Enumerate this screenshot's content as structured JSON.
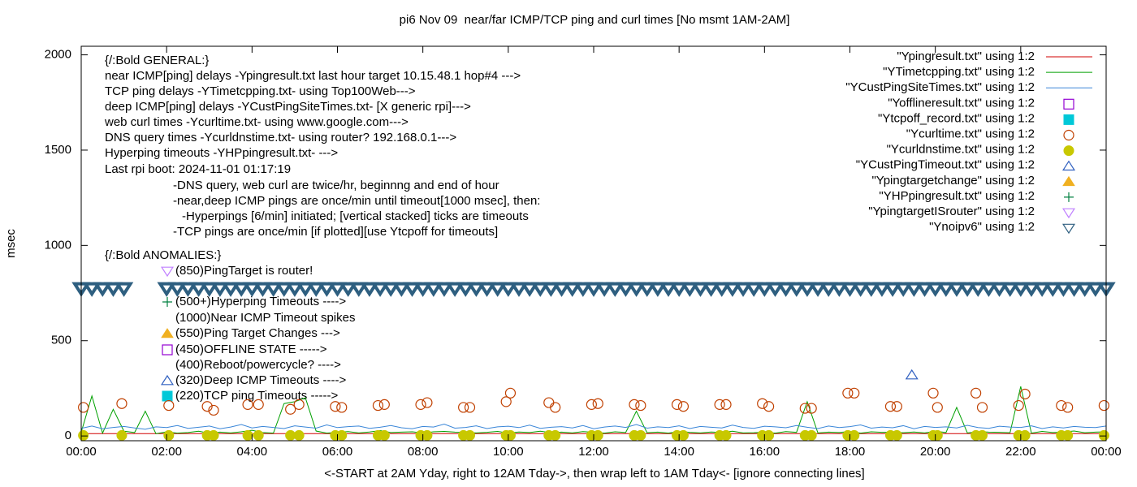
{
  "chart_data": {
    "type": "line",
    "title": "pi6 Nov 09  near/far ICMP/TCP ping and curl times [No msmt 1AM-2AM]",
    "xlabel": "<-START at 2AM Yday, right to 12AM Tday->, then wrap left to 1AM Tday<- [ignore connecting lines]",
    "ylabel": "msec",
    "xlim": [
      0,
      24
    ],
    "ylim": [
      -25,
      2045
    ],
    "xticks": [
      {
        "value": 0,
        "label": "00:00"
      },
      {
        "value": 2,
        "label": "02:00"
      },
      {
        "value": 4,
        "label": "04:00"
      },
      {
        "value": 6,
        "label": "06:00"
      },
      {
        "value": 8,
        "label": "08:00"
      },
      {
        "value": 10,
        "label": "10:00"
      },
      {
        "value": 12,
        "label": "12:00"
      },
      {
        "value": 14,
        "label": "14:00"
      },
      {
        "value": 16,
        "label": "16:00"
      },
      {
        "value": 18,
        "label": "18:00"
      },
      {
        "value": 20,
        "label": "20:00"
      },
      {
        "value": 22,
        "label": "22:00"
      },
      {
        "value": 24,
        "label": "00:00"
      }
    ],
    "yticks": [
      0,
      500,
      1000,
      1500,
      2000
    ],
    "legend": "top-right",
    "annotations": [
      "{/:Bold GENERAL:}",
      "near ICMP[ping] delays -Ypingresult.txt last hour target 10.15.48.1 hop#4 --->",
      "TCP ping delays -YTimetcpping.txt- using Top100Web--->",
      "deep ICMP[ping] delays -YCustPingSiteTimes.txt- [X generic rpi]--->",
      "web curl times -Ycurltime.txt- using www.google.com--->",
      "DNS query times -Ycurldnstime.txt- using router? 192.168.0.1--->",
      "Hyperping timeouts -YHPpingresult.txt- --->",
      "Last rpi boot: 2024-11-01 01:17:19",
      "-DNS query, web curl are twice/hr, beginnng and end of hour",
      "-near,deep ICMP pings are once/min until timeout[1000 msec], then:",
      "-Hyperpings [6/min] initiated; [vertical stacked] ticks are timeouts",
      "-TCP pings are once/min [if plotted][use Ytcpoff for timeouts]",
      "{/:Bold ANOMALIES:}",
      {
        "text": "(850)PingTarget is router!",
        "marker": "invtri",
        "color": "#c080ff"
      },
      {
        "text": "(500+)Hyperping Timeouts ---->",
        "marker": "plus",
        "color": "#008040"
      },
      "(1000)Near ICMP Timeout spikes",
      {
        "text": "(550)Ping Target Changes --->",
        "marker": "ftri",
        "color": "#f0b020"
      },
      {
        "text": "(450)OFFLINE STATE ----->",
        "marker": "square",
        "color": "#9400d3"
      },
      "(400)Reboot/powercycle? ---->",
      {
        "text": "(320)Deep ICMP Timeouts ---->",
        "marker": "tri",
        "color": "#3060c0"
      },
      {
        "text": "(220)TCP ping Timeouts ----->",
        "marker": "fsquare",
        "color": "#00c8d8"
      }
    ],
    "series": [
      {
        "name": "\"Ypingresult.txt\" using 1:2",
        "style": "lines",
        "color": "#d00000",
        "x": [
          0,
          24
        ],
        "values": [
          12,
          12
        ]
      },
      {
        "name": "\"YTimetcpping.txt\" using 1:2",
        "style": "lines",
        "color": "#00a000",
        "x": [
          0,
          0.25,
          0.5,
          0.75,
          1,
          1.25,
          1.5,
          1.75,
          2,
          2.25,
          2.5,
          2.75,
          3,
          3.25,
          3.5,
          3.75,
          4,
          4.25,
          4.5,
          4.75,
          5,
          5.25,
          5.5,
          5.75,
          6,
          6.25,
          6.5,
          6.75,
          7,
          7.25,
          7.5,
          7.75,
          8,
          8.25,
          8.5,
          8.75,
          9,
          9.25,
          9.5,
          9.75,
          10,
          10.25,
          10.5,
          10.75,
          11,
          11.25,
          11.5,
          11.75,
          12,
          12.25,
          12.5,
          12.75,
          13,
          13.25,
          13.5,
          13.75,
          14,
          14.25,
          14.5,
          14.75,
          15,
          15.25,
          15.5,
          15.75,
          16,
          16.25,
          16.5,
          16.75,
          17,
          17.25,
          17.5,
          17.75,
          18,
          18.25,
          18.5,
          18.75,
          19,
          19.25,
          19.5,
          19.75,
          20,
          20.25,
          20.5,
          20.75,
          21,
          21.25,
          21.5,
          21.75,
          22,
          22.25,
          22.5,
          22.75,
          23,
          23.25,
          23.5,
          23.75,
          24
        ],
        "values": [
          20,
          210,
          15,
          140,
          25,
          18,
          130,
          12,
          22,
          15,
          18,
          25,
          14,
          20,
          16,
          22,
          30,
          18,
          15,
          170,
          180,
          200,
          26,
          15,
          19,
          23,
          16,
          21,
          28,
          18,
          20,
          22,
          15,
          22,
          24,
          20,
          19,
          16,
          19,
          24,
          15,
          21,
          18,
          25,
          17,
          20,
          16,
          23,
          19,
          15,
          22,
          18,
          130,
          17,
          20,
          15,
          24,
          19,
          16,
          21,
          18,
          25,
          16,
          17,
          20,
          15,
          23,
          19,
          180,
          16,
          20,
          18,
          24,
          15,
          22,
          19,
          20,
          17,
          21,
          16,
          25,
          18,
          150,
          16,
          23,
          20,
          19,
          17,
          260,
          15,
          24,
          18,
          21,
          26,
          17,
          20,
          22
        ]
      },
      {
        "name": "\"YCustPingSiteTimes.txt\" using 1:2",
        "style": "lines",
        "color": "#3a86d8",
        "x": [
          0,
          0.25,
          0.5,
          0.75,
          1,
          1.25,
          1.5,
          1.75,
          2,
          2.25,
          2.5,
          2.75,
          3,
          3.25,
          3.5,
          3.75,
          4,
          4.25,
          4.5,
          4.75,
          5,
          5.25,
          5.5,
          5.75,
          6,
          6.25,
          6.5,
          6.75,
          7,
          7.25,
          7.5,
          7.75,
          8,
          8.25,
          8.5,
          8.75,
          9,
          9.25,
          9.5,
          9.75,
          10,
          10.25,
          10.5,
          10.75,
          11,
          11.25,
          11.5,
          11.75,
          12,
          12.25,
          12.5,
          12.75,
          13,
          13.25,
          13.5,
          13.75,
          14,
          14.25,
          14.5,
          14.75,
          15,
          15.25,
          15.5,
          15.75,
          16,
          16.25,
          16.5,
          16.75,
          17,
          17.25,
          17.5,
          17.75,
          18,
          18.25,
          18.5,
          18.75,
          19,
          19.25,
          19.5,
          19.75,
          20,
          20.25,
          20.5,
          20.75,
          21,
          21.25,
          21.5,
          21.75,
          22,
          22.25,
          22.5,
          22.75,
          23,
          23.25,
          23.5,
          23.75,
          24
        ],
        "values": [
          40,
          52,
          38,
          45,
          50,
          42,
          35,
          48,
          44,
          55,
          40,
          46,
          52,
          38,
          47,
          60,
          42,
          50,
          45,
          39,
          53,
          47,
          41,
          58,
          44,
          49,
          52,
          40,
          46,
          55,
          43,
          38,
          50,
          47,
          62,
          41,
          45,
          53,
          39,
          48,
          51,
          44,
          57,
          40,
          46,
          49,
          42,
          55,
          38,
          47,
          52,
          45,
          60,
          41,
          48,
          44,
          53,
          39,
          50,
          46,
          42,
          57,
          45,
          40,
          51,
          48,
          43,
          55,
          46,
          39,
          52,
          44,
          49,
          58,
          41,
          47,
          43,
          54,
          38,
          50,
          45,
          48,
          42,
          56,
          44,
          40,
          51,
          47,
          45,
          53,
          39,
          48,
          42,
          50,
          46,
          44,
          52
        ]
      },
      {
        "name": "\"Yofflineresult.txt\" using 1:2",
        "style": "points",
        "marker": "square",
        "color": "#9400d3",
        "x": [],
        "values": []
      },
      {
        "name": "\"Ytcpoff_record.txt\" using 1:2",
        "style": "points",
        "marker": "fsquare",
        "color": "#00c8d8",
        "x": [],
        "values": []
      },
      {
        "name": "\"Ycurltime.txt\" using 1:2",
        "style": "points",
        "marker": "circle",
        "color": "#c04000",
        "x": [
          0.05,
          0.95,
          2.05,
          2.95,
          3.1,
          3.9,
          4.15,
          4.9,
          5.1,
          5.95,
          6.1,
          6.95,
          7.1,
          7.95,
          8.1,
          8.95,
          9.1,
          9.95,
          10.05,
          10.95,
          11.1,
          11.95,
          12.1,
          12.95,
          13.1,
          13.95,
          14.1,
          14.95,
          15.1,
          15.95,
          16.1,
          16.95,
          17.1,
          17.95,
          18.1,
          18.95,
          19.1,
          19.95,
          20.05,
          20.95,
          21.1,
          21.95,
          22.1,
          22.95,
          23.1,
          23.95
        ],
        "values": [
          150,
          170,
          160,
          155,
          135,
          165,
          165,
          140,
          165,
          155,
          150,
          160,
          165,
          165,
          175,
          150,
          150,
          180,
          225,
          175,
          150,
          165,
          170,
          165,
          160,
          165,
          155,
          165,
          165,
          170,
          155,
          145,
          145,
          225,
          225,
          155,
          155,
          225,
          150,
          225,
          150,
          160,
          220,
          160,
          150,
          160
        ]
      },
      {
        "name": "\"Ycurldnstime.txt\" using 1:2",
        "style": "points",
        "marker": "fcircle",
        "color": "#c8c800",
        "x": [
          0.05,
          0.95,
          2.05,
          2.95,
          3.1,
          3.9,
          4.15,
          4.9,
          5.1,
          5.95,
          6.1,
          6.95,
          7.1,
          7.95,
          8.1,
          8.95,
          9.1,
          9.95,
          10.05,
          10.95,
          11.1,
          11.95,
          12.1,
          12.95,
          13.1,
          13.95,
          14.1,
          14.95,
          15.1,
          15.95,
          16.1,
          16.95,
          17.1,
          17.95,
          18.1,
          18.95,
          19.1,
          19.95,
          20.05,
          20.95,
          21.1,
          21.95,
          22.1,
          22.95,
          23.1,
          23.95
        ],
        "values": [
          3,
          3,
          3,
          3,
          3,
          3,
          3,
          3,
          3,
          3,
          3,
          3,
          3,
          3,
          3,
          3,
          3,
          3,
          3,
          3,
          3,
          3,
          3,
          3,
          3,
          3,
          3,
          3,
          3,
          3,
          3,
          3,
          3,
          3,
          3,
          3,
          3,
          3,
          3,
          3,
          3,
          3,
          3,
          3,
          3,
          3
        ]
      },
      {
        "name": "\"YCustPingTimeout.txt\" using 1:2",
        "style": "points",
        "marker": "tri",
        "color": "#3060c0",
        "x": [
          19.45
        ],
        "values": [
          320
        ]
      },
      {
        "name": "\"Ypingtargetchange\" using 1:2",
        "style": "points",
        "marker": "ftri",
        "color": "#f0b020",
        "x": [],
        "values": []
      },
      {
        "name": "\"YHPpingresult.txt\" using 1:2",
        "style": "points",
        "marker": "plus",
        "color": "#008040",
        "x": [],
        "values": []
      },
      {
        "name": "\"YpingtargetISrouter\" using 1:2",
        "style": "points",
        "marker": "invtri",
        "color": "#c080ff",
        "x": [],
        "values": []
      },
      {
        "name": "\"Ynoipv6\" using 1:2",
        "style": "points",
        "marker": "invtri",
        "color": "#2e5f80",
        "x": [
          0,
          0.25,
          0.5,
          0.75,
          1,
          2,
          2.25,
          2.5,
          2.75,
          3,
          3.25,
          3.5,
          3.75,
          4,
          4.25,
          4.5,
          4.75,
          5,
          5.25,
          5.5,
          5.75,
          6,
          6.25,
          6.5,
          6.75,
          7,
          7.25,
          7.5,
          7.75,
          8,
          8.25,
          8.5,
          8.75,
          9,
          9.25,
          9.5,
          9.75,
          10,
          10.25,
          10.5,
          10.75,
          11,
          11.25,
          11.5,
          11.75,
          12,
          12.25,
          12.5,
          12.75,
          13,
          13.25,
          13.5,
          13.75,
          14,
          14.25,
          14.5,
          14.75,
          15,
          15.25,
          15.5,
          15.75,
          16,
          16.25,
          16.5,
          16.75,
          17,
          17.25,
          17.5,
          17.75,
          18,
          18.25,
          18.5,
          18.75,
          19,
          19.25,
          19.5,
          19.75,
          20,
          20.25,
          20.5,
          20.75,
          21,
          21.25,
          21.5,
          21.75,
          22,
          22.25,
          22.5,
          22.75,
          23,
          23.25,
          23.5,
          23.75,
          24
        ],
        "values": [
          775,
          775,
          775,
          775,
          775,
          775,
          775,
          775,
          775,
          775,
          775,
          775,
          775,
          775,
          775,
          775,
          775,
          775,
          775,
          775,
          775,
          775,
          775,
          775,
          775,
          775,
          775,
          775,
          775,
          775,
          775,
          775,
          775,
          775,
          775,
          775,
          775,
          775,
          775,
          775,
          775,
          775,
          775,
          775,
          775,
          775,
          775,
          775,
          775,
          775,
          775,
          775,
          775,
          775,
          775,
          775,
          775,
          775,
          775,
          775,
          775,
          775,
          775,
          775,
          775,
          775,
          775,
          775,
          775,
          775,
          775,
          775,
          775,
          775,
          775,
          775,
          775,
          775,
          775,
          775,
          775,
          775,
          775,
          775,
          775,
          775,
          775,
          775,
          775,
          775,
          775,
          775,
          775,
          775
        ]
      }
    ]
  }
}
